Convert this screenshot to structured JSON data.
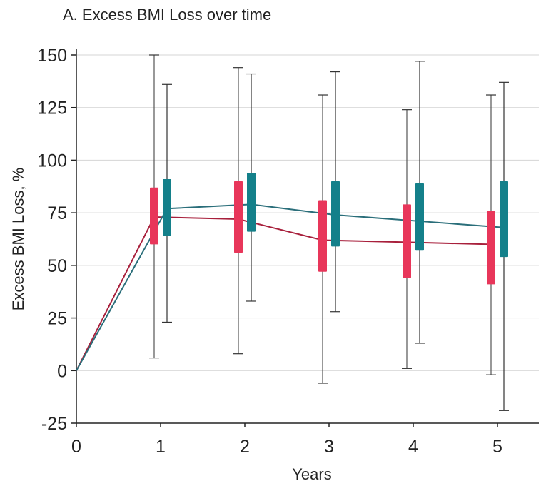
{
  "chart_data": {
    "type": "box",
    "title": "A. Excess BMI Loss over time",
    "xlabel": "Years",
    "ylabel": "Excess BMI Loss, %",
    "x_ticks": [
      0,
      1,
      2,
      3,
      4,
      5
    ],
    "y_ticks": [
      -25,
      0,
      25,
      50,
      75,
      100,
      125,
      150
    ],
    "xlim": [
      0,
      5.5
    ],
    "ylim": [
      -25,
      150
    ],
    "grid": true,
    "series": [
      {
        "color": "#e8365a",
        "line_color": "#a8203c",
        "line": [
          [
            0,
            0
          ],
          [
            1,
            73
          ],
          [
            2,
            72
          ],
          [
            3,
            62
          ],
          [
            4,
            61
          ],
          [
            5,
            60
          ]
        ],
        "boxes": [
          {
            "x": 1,
            "whisker_low": 6,
            "q1": 60,
            "median": 73,
            "q3": 87,
            "whisker_high": 150
          },
          {
            "x": 2,
            "whisker_low": 8,
            "q1": 56,
            "median": 72,
            "q3": 90,
            "whisker_high": 144
          },
          {
            "x": 3,
            "whisker_low": -6,
            "q1": 47,
            "median": 62,
            "q3": 81,
            "whisker_high": 131
          },
          {
            "x": 4,
            "whisker_low": 1,
            "q1": 44,
            "median": 61,
            "q3": 79,
            "whisker_high": 124
          },
          {
            "x": 5,
            "whisker_low": -2,
            "q1": 41,
            "median": 60,
            "q3": 76,
            "whisker_high": 131
          }
        ]
      },
      {
        "color": "#14808a",
        "line_color": "#2a6e7a",
        "line": [
          [
            0,
            0
          ],
          [
            1,
            77
          ],
          [
            2,
            79
          ],
          [
            3,
            74
          ],
          [
            4,
            71
          ],
          [
            5,
            68
          ]
        ],
        "boxes": [
          {
            "x": 1,
            "whisker_low": 23,
            "q1": 64,
            "median": 77,
            "q3": 91,
            "whisker_high": 136
          },
          {
            "x": 2,
            "whisker_low": 33,
            "q1": 66,
            "median": 79,
            "q3": 94,
            "whisker_high": 141
          },
          {
            "x": 3,
            "whisker_low": 28,
            "q1": 59,
            "median": 74,
            "q3": 90,
            "whisker_high": 142
          },
          {
            "x": 4,
            "whisker_low": 13,
            "q1": 57,
            "median": 71,
            "q3": 89,
            "whisker_high": 147
          },
          {
            "x": 5,
            "whisker_low": -19,
            "q1": 54,
            "median": 68,
            "q3": 90,
            "whisker_high": 137
          }
        ]
      }
    ]
  }
}
